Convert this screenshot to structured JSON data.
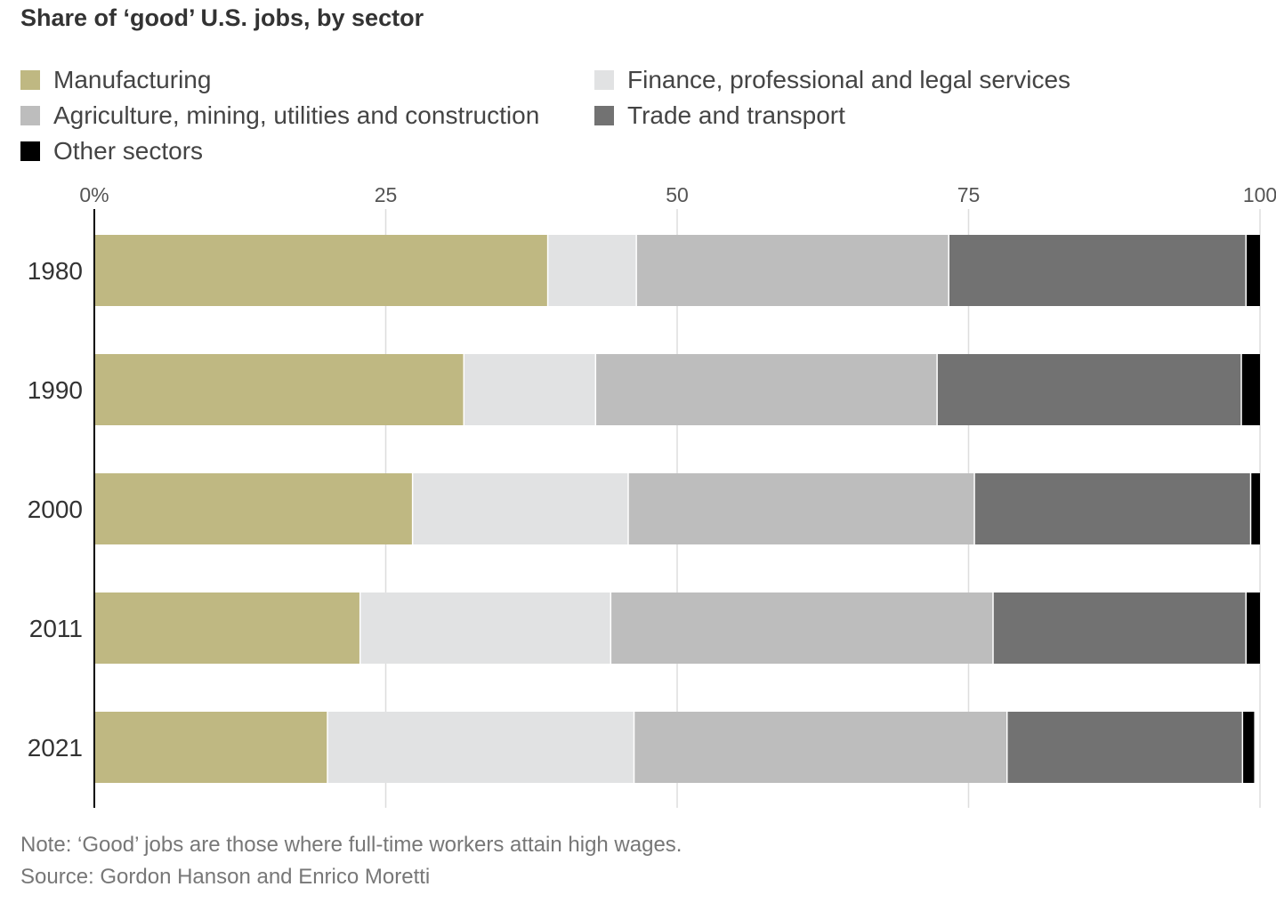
{
  "title": "Share of ‘good’ U.S. jobs, by sector",
  "note": "Note: ‘Good’ jobs are those where full-time workers attain high wages.",
  "source": "Source: Gordon Hanson and Enrico Moretti",
  "colors": {
    "manufacturing": "#bfb882",
    "finance": "#e1e2e3",
    "agriculture": "#bdbdbd",
    "trade": "#727272",
    "other": "#000000",
    "grid": "#dddddd",
    "axis": "#000000"
  },
  "legend": {
    "items": [
      {
        "label": "Manufacturing",
        "color": "#bfb882"
      },
      {
        "label": "Finance, professional and legal services",
        "color": "#e1e2e3"
      },
      {
        "label": "Agriculture, mining, utilities and construction",
        "color": "#bdbdbd"
      },
      {
        "label": "Trade and transport",
        "color": "#727272"
      },
      {
        "label": "Other sectors",
        "color": "#000000"
      }
    ]
  },
  "chart_data": {
    "type": "bar",
    "orientation": "horizontal",
    "stacked": true,
    "title": "Share of ‘good’ U.S. jobs, by sector",
    "categories": [
      "1980",
      "1990",
      "2000",
      "2011",
      "2021"
    ],
    "series": [
      {
        "name": "Manufacturing",
        "color": "#bfb882",
        "values": [
          38.9,
          31.7,
          27.3,
          22.8,
          20.0
        ]
      },
      {
        "name": "Finance, professional and legal services",
        "color": "#e1e2e3",
        "values": [
          7.6,
          11.3,
          18.5,
          21.5,
          26.3
        ]
      },
      {
        "name": "Agriculture, mining, utilities and construction",
        "color": "#bdbdbd",
        "values": [
          26.8,
          29.3,
          29.7,
          32.8,
          32.0
        ]
      },
      {
        "name": "Trade and transport",
        "color": "#727272",
        "values": [
          25.5,
          26.1,
          23.7,
          21.7,
          20.2
        ]
      },
      {
        "name": "Other sectors",
        "color": "#000000",
        "values": [
          1.2,
          1.6,
          0.8,
          1.2,
          1.0
        ]
      }
    ],
    "xlim": [
      0,
      100
    ],
    "xticks": [
      0,
      25,
      50,
      75,
      100
    ],
    "xtick_labels": [
      "0%",
      "25",
      "50",
      "75",
      "100"
    ],
    "xaxis_position": "top",
    "grid": true,
    "legend_position": "top"
  }
}
